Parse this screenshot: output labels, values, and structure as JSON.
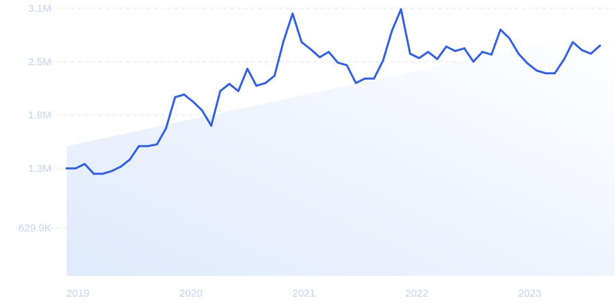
{
  "chart_data": {
    "type": "line",
    "title": "",
    "xlabel": "",
    "ylabel": "",
    "y_ticks": [
      {
        "value": 629900,
        "label": "629.9K"
      },
      {
        "value": 1300000,
        "label": "1.3M"
      },
      {
        "value": 1900000,
        "label": "1.9M"
      },
      {
        "value": 2500000,
        "label": "2.5M"
      },
      {
        "value": 3100000,
        "label": "3.1M"
      }
    ],
    "x_ticks": [
      {
        "value": 2019.0,
        "label": "2019"
      },
      {
        "value": 2020.0,
        "label": "2020"
      },
      {
        "value": 2021.0,
        "label": "2021"
      },
      {
        "value": 2022.0,
        "label": "2022"
      },
      {
        "value": 2023.0,
        "label": "2023"
      }
    ],
    "xlim": [
      2018.9,
      2023.75
    ],
    "ylim": [
      0,
      3100000
    ],
    "grid": "horizontal-dashed",
    "series": [
      {
        "color": "#3461dc",
        "points": [
          [
            2018.9,
            1300000
          ],
          [
            2018.98,
            1300000
          ],
          [
            2019.06,
            1350000
          ],
          [
            2019.14,
            1240000
          ],
          [
            2019.22,
            1240000
          ],
          [
            2019.3,
            1270000
          ],
          [
            2019.38,
            1320000
          ],
          [
            2019.46,
            1400000
          ],
          [
            2019.54,
            1550000
          ],
          [
            2019.62,
            1550000
          ],
          [
            2019.7,
            1570000
          ],
          [
            2019.78,
            1750000
          ],
          [
            2019.86,
            2100000
          ],
          [
            2019.94,
            2130000
          ],
          [
            2020.02,
            2050000
          ],
          [
            2020.1,
            1950000
          ],
          [
            2020.18,
            1780000
          ],
          [
            2020.26,
            2170000
          ],
          [
            2020.34,
            2250000
          ],
          [
            2020.42,
            2170000
          ],
          [
            2020.5,
            2420000
          ],
          [
            2020.58,
            2230000
          ],
          [
            2020.66,
            2260000
          ],
          [
            2020.74,
            2340000
          ],
          [
            2020.82,
            2730000
          ],
          [
            2020.9,
            3040000
          ],
          [
            2020.98,
            2720000
          ],
          [
            2021.06,
            2640000
          ],
          [
            2021.14,
            2550000
          ],
          [
            2021.22,
            2610000
          ],
          [
            2021.3,
            2490000
          ],
          [
            2021.38,
            2460000
          ],
          [
            2021.46,
            2260000
          ],
          [
            2021.54,
            2310000
          ],
          [
            2021.62,
            2310000
          ],
          [
            2021.7,
            2510000
          ],
          [
            2021.78,
            2850000
          ],
          [
            2021.86,
            3090000
          ],
          [
            2021.94,
            2590000
          ],
          [
            2022.02,
            2540000
          ],
          [
            2022.1,
            2610000
          ],
          [
            2022.18,
            2530000
          ],
          [
            2022.26,
            2670000
          ],
          [
            2022.34,
            2620000
          ],
          [
            2022.42,
            2650000
          ],
          [
            2022.5,
            2500000
          ],
          [
            2022.58,
            2610000
          ],
          [
            2022.66,
            2580000
          ],
          [
            2022.74,
            2860000
          ],
          [
            2022.82,
            2760000
          ],
          [
            2022.9,
            2590000
          ],
          [
            2022.98,
            2480000
          ],
          [
            2023.06,
            2400000
          ],
          [
            2023.14,
            2370000
          ],
          [
            2023.22,
            2370000
          ],
          [
            2023.3,
            2520000
          ],
          [
            2023.38,
            2720000
          ],
          [
            2023.46,
            2630000
          ],
          [
            2023.54,
            2590000
          ],
          [
            2023.62,
            2680000
          ]
        ]
      }
    ],
    "trend_band": {
      "color_from": "#dfeafb",
      "color_to": "#ffffff",
      "start": [
        2018.9,
        1550000
      ],
      "end": [
        2023.75,
        2880000
      ]
    }
  }
}
